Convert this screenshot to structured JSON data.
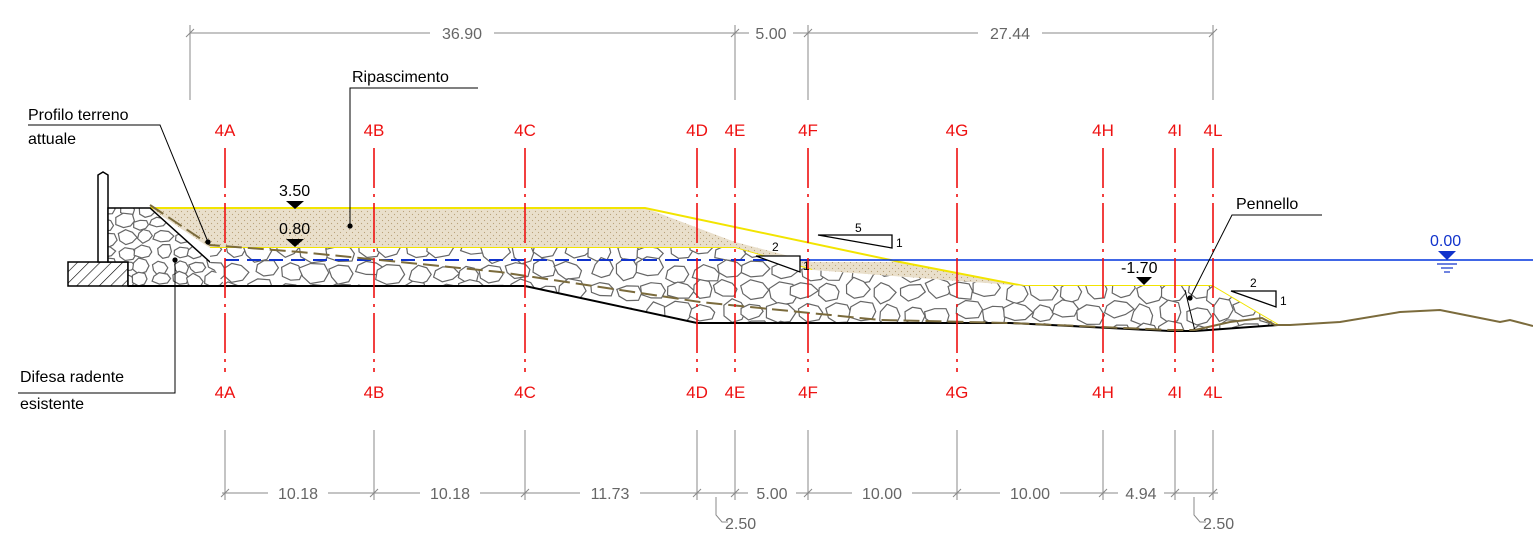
{
  "dimensions": {
    "top": [
      "36.90",
      "5.00",
      "27.44"
    ],
    "bottom": [
      "10.18",
      "10.18",
      "11.73",
      "5.00",
      "10.00",
      "10.00",
      "4.94"
    ],
    "offsets": [
      "2.50",
      "2.50"
    ]
  },
  "sections": [
    "4A",
    "4B",
    "4C",
    "4D",
    "4E",
    "4F",
    "4G",
    "4H",
    "4I",
    "4L"
  ],
  "labels": {
    "profilo_line1": "Profilo terreno",
    "profilo_line2": "attuale",
    "ripascimento": "Ripascimento",
    "pennello": "Pennello",
    "difesa_line1": "Difesa radente",
    "difesa_line2": "esistente"
  },
  "elevations": {
    "crest": "3.50",
    "berm": "0.80",
    "toe": "-1.70",
    "sea_level": "0.00"
  },
  "slopes": [
    {
      "run": "5",
      "rise": "1"
    },
    {
      "run": "2",
      "rise": "1"
    },
    {
      "run": "2",
      "rise": "1"
    }
  ],
  "colors": {
    "section_lines": "#ee1111",
    "sea_level": "#1133cc",
    "sea_line": "#0033dd",
    "nourishment_fill": "#e8dcc6",
    "nourishment_edge": "#f0e000",
    "rock_stroke": "#666666",
    "existing_profile": "#7b6b3c",
    "dimension_lines": "#777777"
  },
  "icons": [
    "elevation-marker-icon",
    "water-level-icon",
    "slope-triangle-icon",
    "leader-dot-icon",
    "hatch-pattern"
  ]
}
